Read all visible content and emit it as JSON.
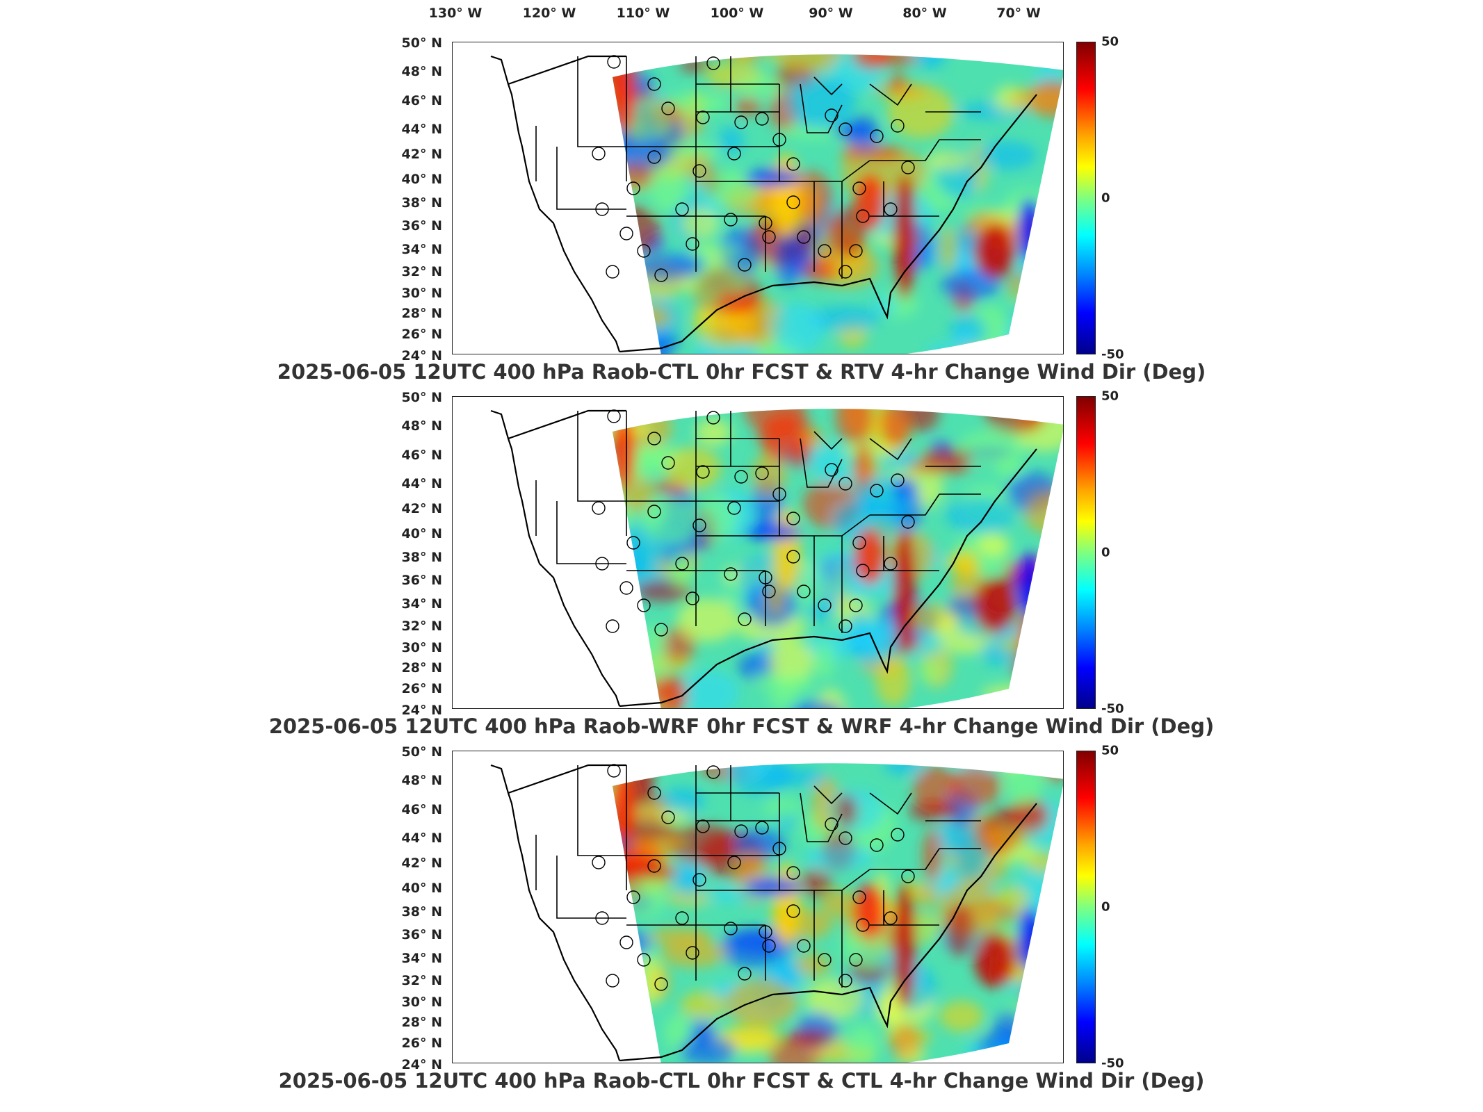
{
  "longitude_labels": [
    "130° W",
    "120° W",
    "110° W",
    "100° W",
    "90° W",
    "80° W",
    "70° W"
  ],
  "latitude_labels": [
    "50° N",
    "48° N",
    "46° N",
    "44° N",
    "42° N",
    "40° N",
    "38° N",
    "36° N",
    "34° N",
    "32° N",
    "30° N",
    "28° N",
    "26° N",
    "24° N"
  ],
  "colorbar": {
    "max": "50",
    "mid": "0",
    "min": "-50",
    "colors": [
      "#800000",
      "#ff0000",
      "#ffa500",
      "#ffff00",
      "#7fff7f",
      "#00ffff",
      "#0080ff",
      "#0000ff",
      "#00008b"
    ]
  },
  "panels": [
    {
      "title": "2025-06-05 12UTC 400 hPa Raob-CTL 0hr FCST & RTV 4-hr Change Wind Dir (Deg)"
    },
    {
      "title": "2025-06-05 12UTC 400 hPa Raob-WRF 0hr FCST & WRF 4-hr Change Wind Dir (Deg)"
    },
    {
      "title": "2025-06-05 12UTC 400 hPa Raob-CTL 0hr FCST & CTL 4-hr Change Wind Dir (Deg)"
    }
  ],
  "icons": {
    "station": "circle-marker"
  }
}
